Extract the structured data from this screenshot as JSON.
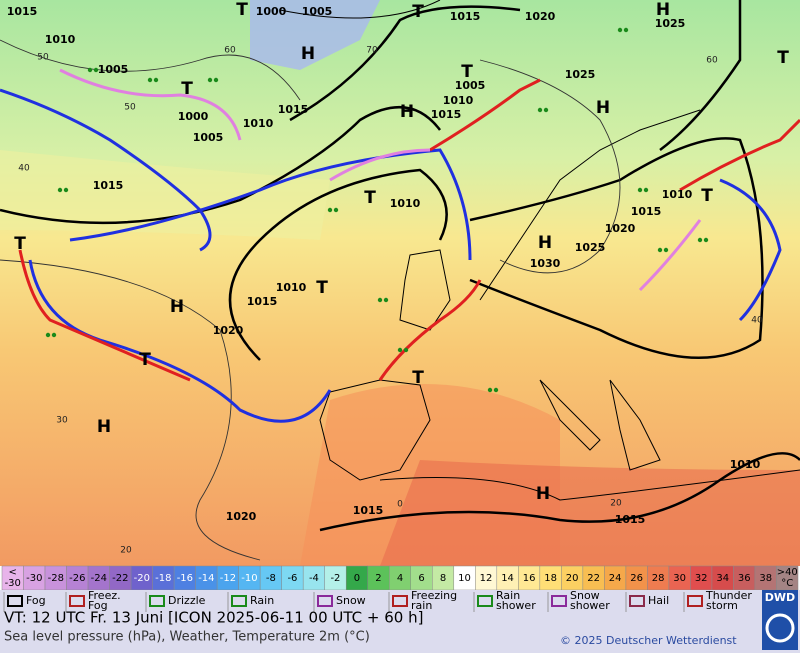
{
  "map": {
    "pressure_labels": [
      "1015",
      "1010",
      "1005",
      "1000",
      "1005",
      "1000",
      "1005",
      "1015",
      "1020",
      "1025",
      "1025",
      "1010",
      "1015",
      "1005",
      "1010",
      "1015",
      "1015",
      "1010",
      "1010",
      "1015",
      "1020",
      "1030",
      "1025",
      "1020",
      "1010",
      "1015",
      "1020",
      "1015",
      "1015",
      "1010"
    ],
    "isotherm_labels": [
      "50",
      "60",
      "70",
      "50",
      "40",
      "60",
      "30",
      "20",
      "20",
      "0",
      "40"
    ],
    "centers": [
      "T",
      "T",
      "H",
      "H",
      "T",
      "T",
      "H",
      "H",
      "T",
      "H",
      "T",
      "T",
      "H",
      "T",
      "T",
      "T",
      "H",
      "H",
      "T"
    ]
  },
  "legend": {
    "low_label": [
      "<",
      "-30"
    ],
    "temperatures": [
      -30,
      -28,
      -26,
      -24,
      -22,
      -20,
      -18,
      -16,
      -14,
      -12,
      -10,
      -8,
      -6,
      -4,
      -2,
      0,
      2,
      4,
      6,
      8,
      10,
      12,
      14,
      16,
      18,
      20,
      22,
      24,
      26,
      28,
      30,
      32,
      34,
      36,
      38
    ],
    "high_label": [
      ">40",
      "°C"
    ],
    "colors": [
      "#e8b4ea",
      "#d8a2e2",
      "#c892dc",
      "#b682d4",
      "#a474cc",
      "#9268c6",
      "#6f62cc",
      "#5a70d8",
      "#4e80e2",
      "#4a92e8",
      "#4ba4ee",
      "#55b6f2",
      "#66c8f4",
      "#7dd8f2",
      "#98e4ee",
      "#b4f0e8",
      "#34a84a",
      "#5cc25a",
      "#80d070",
      "#a2de8c",
      "#c4eaa4",
      "#ffffff",
      "#fff8d4",
      "#fff0b4",
      "#ffe894",
      "#ffdf76",
      "#fcd062",
      "#f8be52",
      "#f5a84a",
      "#f2924a",
      "#ef7c50",
      "#ea6452",
      "#e04e4e",
      "#d64c4c",
      "#c85e5e",
      "#b47474",
      "#a48484"
    ],
    "symbols": [
      [
        "Fog"
      ],
      [
        "Freez.",
        "Fog"
      ],
      [
        "Drizzle"
      ],
      [
        "Rain"
      ],
      [
        "Snow"
      ],
      [
        "Freezing",
        "rain"
      ],
      [
        "Rain",
        "shower"
      ],
      [
        "Snow",
        "shower"
      ],
      [
        "Hail"
      ],
      [
        "Thunder",
        "storm"
      ]
    ]
  },
  "footer": {
    "valid_time": "VT: 12 UTC Fr.  13 Juni [ICON 2025-06-11  00 UTC + 60 h]",
    "description": "Sea level pressure (hPa), Weather, Temperature 2m (°C)",
    "copyright": "© 2025 Deutscher Wetterdienst",
    "logo": "DWD"
  }
}
